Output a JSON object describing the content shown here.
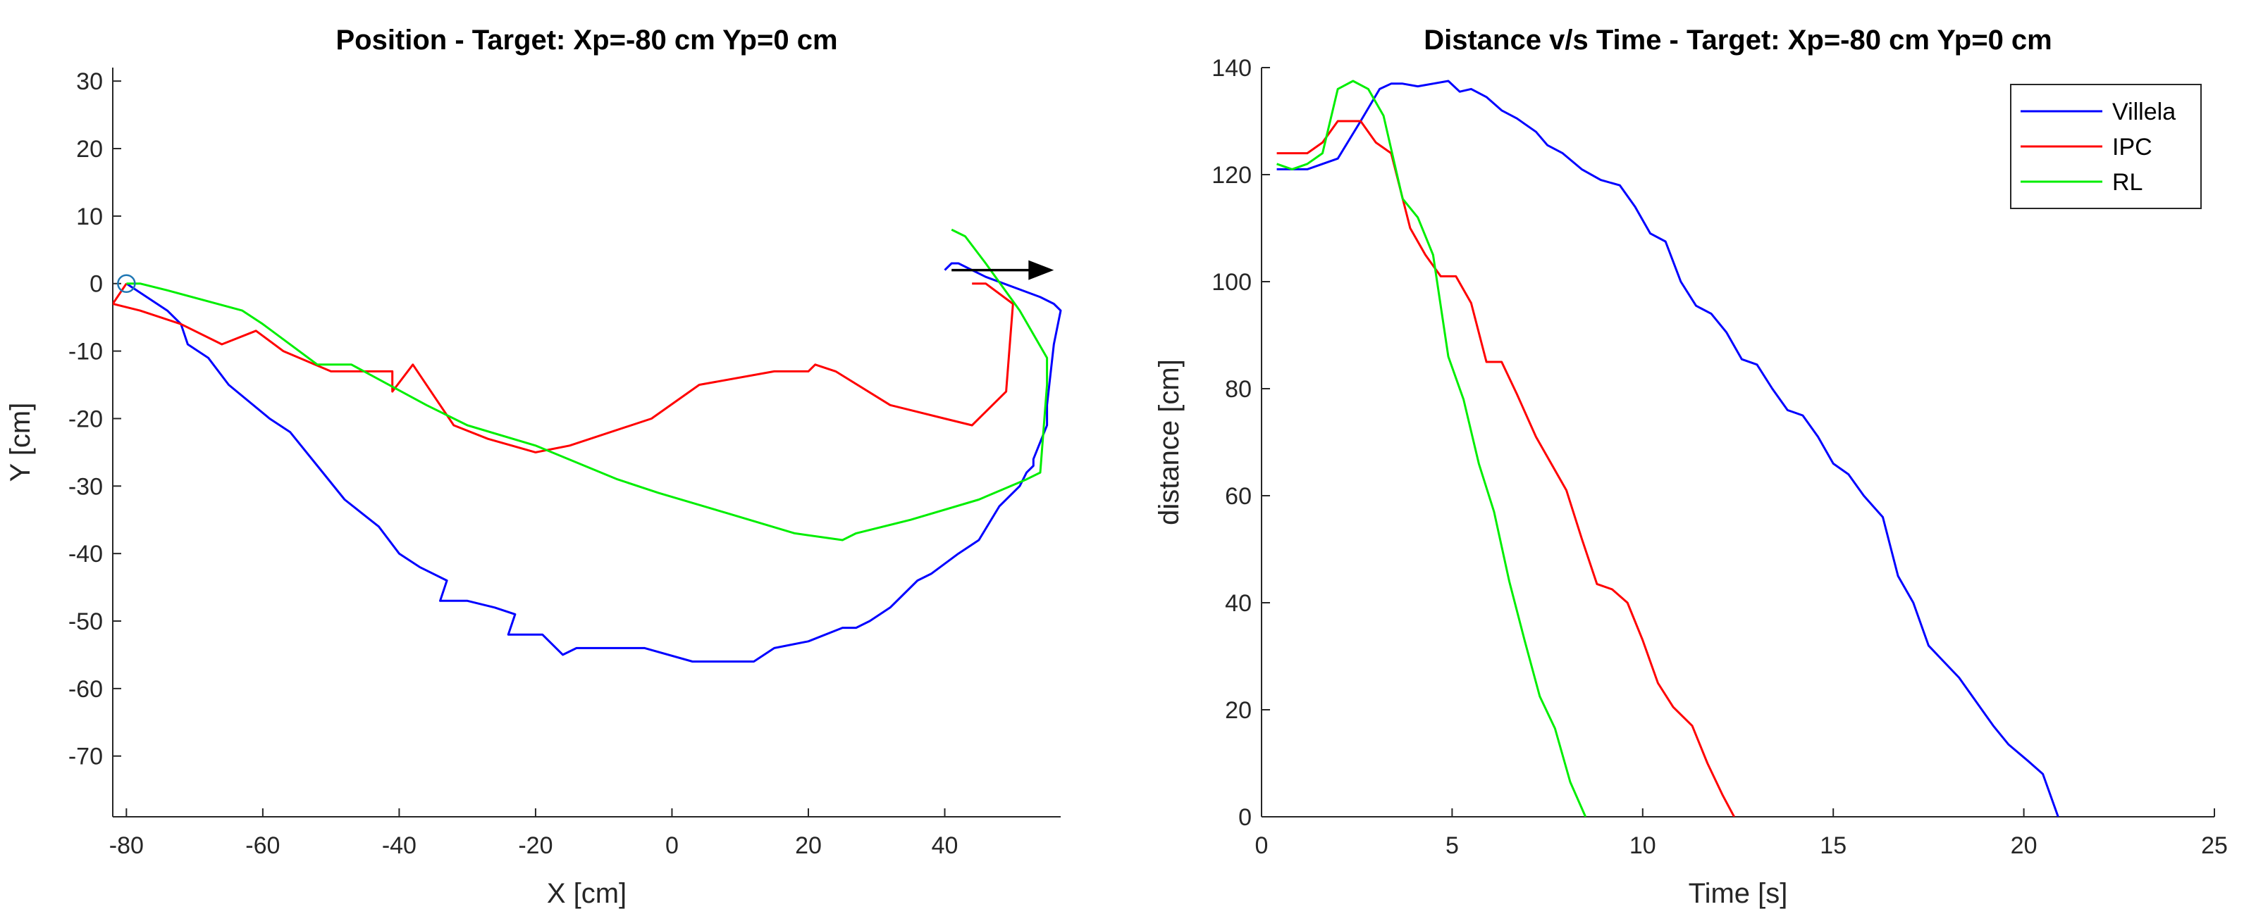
{
  "chart_data": [
    {
      "type": "line",
      "title": "Position - Target: Xp=-80 cm Yp=0 cm",
      "xlabel": "X [cm]",
      "ylabel": "Y [cm]",
      "xlim": [
        -82,
        57
      ],
      "ylim": [
        -79,
        32
      ],
      "xticks": [
        -80,
        -60,
        -40,
        -20,
        0,
        20,
        40
      ],
      "yticks": [
        30,
        20,
        10,
        0,
        -10,
        -20,
        -30,
        -40,
        -50,
        -60,
        -70
      ],
      "start_marker": {
        "x": -80,
        "y": 0
      },
      "arrow": {
        "from": [
          41,
          2
        ],
        "to": [
          56,
          2
        ]
      },
      "series": [
        {
          "name": "Villela",
          "color": "#0000ff",
          "points": [
            [
              -80,
              0
            ],
            [
              -74,
              -4
            ],
            [
              -72,
              -6
            ],
            [
              -71,
              -9
            ],
            [
              -68,
              -11
            ],
            [
              -65,
              -15
            ],
            [
              -59,
              -20
            ],
            [
              -56,
              -22
            ],
            [
              -52,
              -27
            ],
            [
              -48,
              -32
            ],
            [
              -43,
              -36
            ],
            [
              -40,
              -40
            ],
            [
              -37,
              -42
            ],
            [
              -33,
              -44
            ],
            [
              -34,
              -47
            ],
            [
              -30,
              -47
            ],
            [
              -26,
              -48
            ],
            [
              -23,
              -49
            ],
            [
              -24,
              -52
            ],
            [
              -19,
              -52
            ],
            [
              -16,
              -55
            ],
            [
              -14,
              -54
            ],
            [
              -4,
              -54
            ],
            [
              3,
              -56
            ],
            [
              12,
              -56
            ],
            [
              15,
              -54
            ],
            [
              20,
              -53
            ],
            [
              25,
              -51
            ],
            [
              27,
              -51
            ],
            [
              29,
              -50
            ],
            [
              32,
              -48
            ],
            [
              36,
              -44
            ],
            [
              38,
              -43
            ],
            [
              42,
              -40
            ],
            [
              45,
              -38
            ],
            [
              48,
              -33
            ],
            [
              51,
              -30
            ],
            [
              52,
              -28
            ],
            [
              53,
              -27
            ],
            [
              53,
              -26
            ],
            [
              55,
              -21
            ],
            [
              55,
              -18
            ],
            [
              56,
              -9
            ],
            [
              57,
              -4
            ],
            [
              56,
              -3
            ],
            [
              54,
              -2
            ],
            [
              46,
              1
            ],
            [
              42,
              3
            ],
            [
              41,
              3
            ],
            [
              40,
              2
            ]
          ]
        },
        {
          "name": "IPC",
          "color": "#ff0000",
          "points": [
            [
              44,
              0
            ],
            [
              46,
              0
            ],
            [
              50,
              -3
            ],
            [
              49,
              -16
            ],
            [
              44,
              -21
            ],
            [
              40,
              -20
            ],
            [
              32,
              -18
            ],
            [
              24,
              -13
            ],
            [
              21,
              -12
            ],
            [
              20,
              -13
            ],
            [
              15,
              -13
            ],
            [
              4,
              -15
            ],
            [
              -3,
              -20
            ],
            [
              -15,
              -24
            ],
            [
              -20,
              -25
            ],
            [
              -27,
              -23
            ],
            [
              -32,
              -21
            ],
            [
              -38,
              -12
            ],
            [
              -41,
              -16
            ],
            [
              -41,
              -13
            ],
            [
              -50,
              -13
            ],
            [
              -57,
              -10
            ],
            [
              -61,
              -7
            ],
            [
              -66,
              -9
            ],
            [
              -72,
              -6
            ],
            [
              -78,
              -4
            ],
            [
              -82,
              -3
            ],
            [
              -80,
              0
            ]
          ]
        },
        {
          "name": "RL",
          "color": "#00ee00",
          "points": [
            [
              41,
              8
            ],
            [
              43,
              7
            ],
            [
              46,
              3
            ],
            [
              51,
              -4
            ],
            [
              55,
              -11
            ],
            [
              55,
              -15
            ],
            [
              54,
              -28
            ],
            [
              52,
              -29
            ],
            [
              45,
              -32
            ],
            [
              35,
              -35
            ],
            [
              27,
              -37
            ],
            [
              25,
              -38
            ],
            [
              18,
              -37
            ],
            [
              8,
              -34
            ],
            [
              -2,
              -31
            ],
            [
              -8,
              -29
            ],
            [
              -20,
              -24
            ],
            [
              -30,
              -21
            ],
            [
              -36,
              -18
            ],
            [
              -47,
              -12
            ],
            [
              -52,
              -12
            ],
            [
              -60,
              -6
            ],
            [
              -63,
              -4
            ],
            [
              -74,
              -1
            ],
            [
              -78,
              0
            ],
            [
              -80,
              0
            ]
          ]
        }
      ]
    },
    {
      "type": "line",
      "title": "Distance v/s Time - Target: Xp=-80 cm Yp=0 cm",
      "xlabel": "Time [s]",
      "ylabel": "distance [cm]",
      "xlim": [
        0,
        25
      ],
      "ylim": [
        0,
        140
      ],
      "xticks": [
        0,
        5,
        10,
        15,
        20,
        25
      ],
      "yticks": [
        140,
        120,
        100,
        80,
        60,
        40,
        20,
        0
      ],
      "legend_position": "top-right",
      "series": [
        {
          "name": "Villela",
          "color": "#0000ff",
          "points": [
            [
              0.4,
              121
            ],
            [
              1.2,
              121
            ],
            [
              2,
              123
            ],
            [
              2.6,
              130
            ],
            [
              3.1,
              136
            ],
            [
              3.4,
              137
            ],
            [
              3.7,
              137
            ],
            [
              4.1,
              136.5
            ],
            [
              4.5,
              137
            ],
            [
              4.9,
              137.5
            ],
            [
              5.2,
              135.5
            ],
            [
              5.5,
              136
            ],
            [
              5.9,
              134.5
            ],
            [
              6.3,
              132
            ],
            [
              6.7,
              130.5
            ],
            [
              7.2,
              128
            ],
            [
              7.5,
              125.5
            ],
            [
              7.9,
              124
            ],
            [
              8.4,
              121
            ],
            [
              8.9,
              119
            ],
            [
              9.4,
              118
            ],
            [
              9.8,
              114
            ],
            [
              10.2,
              109
            ],
            [
              10.6,
              107.5
            ],
            [
              11,
              100
            ],
            [
              11.4,
              95.5
            ],
            [
              11.8,
              94
            ],
            [
              12.2,
              90.5
            ],
            [
              12.6,
              85.5
            ],
            [
              13,
              84.5
            ],
            [
              13.4,
              80
            ],
            [
              13.8,
              76
            ],
            [
              14.2,
              75
            ],
            [
              14.6,
              71
            ],
            [
              15,
              66
            ],
            [
              15.4,
              64
            ],
            [
              15.8,
              60
            ],
            [
              16.3,
              56
            ],
            [
              16.7,
              45
            ],
            [
              17.1,
              40
            ],
            [
              17.5,
              32
            ],
            [
              17.9,
              29
            ],
            [
              18.3,
              26
            ],
            [
              18.8,
              21
            ],
            [
              19.2,
              17
            ],
            [
              19.6,
              13.5
            ],
            [
              20.1,
              10.5
            ],
            [
              20.5,
              8
            ],
            [
              20.9,
              0
            ]
          ]
        },
        {
          "name": "IPC",
          "color": "#ff0000",
          "points": [
            [
              0.4,
              124
            ],
            [
              1.2,
              124
            ],
            [
              1.6,
              126
            ],
            [
              2.0,
              130
            ],
            [
              2.6,
              130
            ],
            [
              3.0,
              126
            ],
            [
              3.4,
              124
            ],
            [
              3.9,
              110
            ],
            [
              4.3,
              105
            ],
            [
              4.7,
              101
            ],
            [
              5.1,
              101
            ],
            [
              5.5,
              96
            ],
            [
              5.9,
              85
            ],
            [
              6.3,
              85
            ],
            [
              6.7,
              79
            ],
            [
              7.2,
              71
            ],
            [
              7.6,
              66
            ],
            [
              8,
              61
            ],
            [
              8.4,
              52
            ],
            [
              8.8,
              43.5
            ],
            [
              9.2,
              42.5
            ],
            [
              9.6,
              40
            ],
            [
              10,
              33
            ],
            [
              10.4,
              25
            ],
            [
              10.8,
              20.5
            ],
            [
              11.3,
              17
            ],
            [
              11.7,
              10
            ],
            [
              12.1,
              4
            ],
            [
              12.4,
              0
            ]
          ]
        },
        {
          "name": "RL",
          "color": "#00ee00",
          "points": [
            [
              0.4,
              122
            ],
            [
              0.8,
              121
            ],
            [
              1.2,
              122
            ],
            [
              1.6,
              124
            ],
            [
              2,
              136
            ],
            [
              2.4,
              137.5
            ],
            [
              2.8,
              136
            ],
            [
              3.2,
              131
            ],
            [
              3.7,
              115.5
            ],
            [
              4.1,
              112
            ],
            [
              4.5,
              105
            ],
            [
              4.9,
              86
            ],
            [
              5.3,
              78
            ],
            [
              5.7,
              66
            ],
            [
              6.1,
              57
            ],
            [
              6.5,
              44
            ],
            [
              6.9,
              33
            ],
            [
              7.3,
              22.5
            ],
            [
              7.7,
              16.5
            ],
            [
              8.1,
              6.5
            ],
            [
              8.5,
              0
            ]
          ]
        }
      ]
    }
  ]
}
